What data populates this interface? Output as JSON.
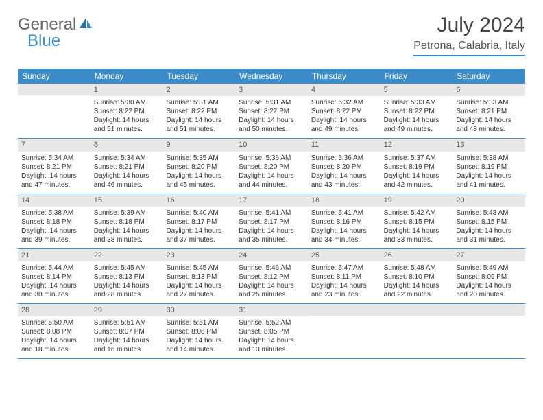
{
  "logo": {
    "part1": "General",
    "part2": "Blue"
  },
  "header": {
    "month_title": "July 2024",
    "location": "Petrona, Calabria, Italy"
  },
  "colors": {
    "accent": "#3b8cc9",
    "daynum_bg": "#e8e8e8",
    "text": "#333333",
    "header_text": "#555555"
  },
  "days_of_week": [
    "Sunday",
    "Monday",
    "Tuesday",
    "Wednesday",
    "Thursday",
    "Friday",
    "Saturday"
  ],
  "weeks": [
    [
      {
        "n": "",
        "sunrise": "",
        "sunset": "",
        "daylight": ""
      },
      {
        "n": "1",
        "sunrise": "Sunrise: 5:30 AM",
        "sunset": "Sunset: 8:22 PM",
        "daylight": "Daylight: 14 hours and 51 minutes."
      },
      {
        "n": "2",
        "sunrise": "Sunrise: 5:31 AM",
        "sunset": "Sunset: 8:22 PM",
        "daylight": "Daylight: 14 hours and 51 minutes."
      },
      {
        "n": "3",
        "sunrise": "Sunrise: 5:31 AM",
        "sunset": "Sunset: 8:22 PM",
        "daylight": "Daylight: 14 hours and 50 minutes."
      },
      {
        "n": "4",
        "sunrise": "Sunrise: 5:32 AM",
        "sunset": "Sunset: 8:22 PM",
        "daylight": "Daylight: 14 hours and 49 minutes."
      },
      {
        "n": "5",
        "sunrise": "Sunrise: 5:33 AM",
        "sunset": "Sunset: 8:22 PM",
        "daylight": "Daylight: 14 hours and 49 minutes."
      },
      {
        "n": "6",
        "sunrise": "Sunrise: 5:33 AM",
        "sunset": "Sunset: 8:21 PM",
        "daylight": "Daylight: 14 hours and 48 minutes."
      }
    ],
    [
      {
        "n": "7",
        "sunrise": "Sunrise: 5:34 AM",
        "sunset": "Sunset: 8:21 PM",
        "daylight": "Daylight: 14 hours and 47 minutes."
      },
      {
        "n": "8",
        "sunrise": "Sunrise: 5:34 AM",
        "sunset": "Sunset: 8:21 PM",
        "daylight": "Daylight: 14 hours and 46 minutes."
      },
      {
        "n": "9",
        "sunrise": "Sunrise: 5:35 AM",
        "sunset": "Sunset: 8:20 PM",
        "daylight": "Daylight: 14 hours and 45 minutes."
      },
      {
        "n": "10",
        "sunrise": "Sunrise: 5:36 AM",
        "sunset": "Sunset: 8:20 PM",
        "daylight": "Daylight: 14 hours and 44 minutes."
      },
      {
        "n": "11",
        "sunrise": "Sunrise: 5:36 AM",
        "sunset": "Sunset: 8:20 PM",
        "daylight": "Daylight: 14 hours and 43 minutes."
      },
      {
        "n": "12",
        "sunrise": "Sunrise: 5:37 AM",
        "sunset": "Sunset: 8:19 PM",
        "daylight": "Daylight: 14 hours and 42 minutes."
      },
      {
        "n": "13",
        "sunrise": "Sunrise: 5:38 AM",
        "sunset": "Sunset: 8:19 PM",
        "daylight": "Daylight: 14 hours and 41 minutes."
      }
    ],
    [
      {
        "n": "14",
        "sunrise": "Sunrise: 5:38 AM",
        "sunset": "Sunset: 8:18 PM",
        "daylight": "Daylight: 14 hours and 39 minutes."
      },
      {
        "n": "15",
        "sunrise": "Sunrise: 5:39 AM",
        "sunset": "Sunset: 8:18 PM",
        "daylight": "Daylight: 14 hours and 38 minutes."
      },
      {
        "n": "16",
        "sunrise": "Sunrise: 5:40 AM",
        "sunset": "Sunset: 8:17 PM",
        "daylight": "Daylight: 14 hours and 37 minutes."
      },
      {
        "n": "17",
        "sunrise": "Sunrise: 5:41 AM",
        "sunset": "Sunset: 8:17 PM",
        "daylight": "Daylight: 14 hours and 35 minutes."
      },
      {
        "n": "18",
        "sunrise": "Sunrise: 5:41 AM",
        "sunset": "Sunset: 8:16 PM",
        "daylight": "Daylight: 14 hours and 34 minutes."
      },
      {
        "n": "19",
        "sunrise": "Sunrise: 5:42 AM",
        "sunset": "Sunset: 8:15 PM",
        "daylight": "Daylight: 14 hours and 33 minutes."
      },
      {
        "n": "20",
        "sunrise": "Sunrise: 5:43 AM",
        "sunset": "Sunset: 8:15 PM",
        "daylight": "Daylight: 14 hours and 31 minutes."
      }
    ],
    [
      {
        "n": "21",
        "sunrise": "Sunrise: 5:44 AM",
        "sunset": "Sunset: 8:14 PM",
        "daylight": "Daylight: 14 hours and 30 minutes."
      },
      {
        "n": "22",
        "sunrise": "Sunrise: 5:45 AM",
        "sunset": "Sunset: 8:13 PM",
        "daylight": "Daylight: 14 hours and 28 minutes."
      },
      {
        "n": "23",
        "sunrise": "Sunrise: 5:45 AM",
        "sunset": "Sunset: 8:13 PM",
        "daylight": "Daylight: 14 hours and 27 minutes."
      },
      {
        "n": "24",
        "sunrise": "Sunrise: 5:46 AM",
        "sunset": "Sunset: 8:12 PM",
        "daylight": "Daylight: 14 hours and 25 minutes."
      },
      {
        "n": "25",
        "sunrise": "Sunrise: 5:47 AM",
        "sunset": "Sunset: 8:11 PM",
        "daylight": "Daylight: 14 hours and 23 minutes."
      },
      {
        "n": "26",
        "sunrise": "Sunrise: 5:48 AM",
        "sunset": "Sunset: 8:10 PM",
        "daylight": "Daylight: 14 hours and 22 minutes."
      },
      {
        "n": "27",
        "sunrise": "Sunrise: 5:49 AM",
        "sunset": "Sunset: 8:09 PM",
        "daylight": "Daylight: 14 hours and 20 minutes."
      }
    ],
    [
      {
        "n": "28",
        "sunrise": "Sunrise: 5:50 AM",
        "sunset": "Sunset: 8:08 PM",
        "daylight": "Daylight: 14 hours and 18 minutes."
      },
      {
        "n": "29",
        "sunrise": "Sunrise: 5:51 AM",
        "sunset": "Sunset: 8:07 PM",
        "daylight": "Daylight: 14 hours and 16 minutes."
      },
      {
        "n": "30",
        "sunrise": "Sunrise: 5:51 AM",
        "sunset": "Sunset: 8:06 PM",
        "daylight": "Daylight: 14 hours and 14 minutes."
      },
      {
        "n": "31",
        "sunrise": "Sunrise: 5:52 AM",
        "sunset": "Sunset: 8:05 PM",
        "daylight": "Daylight: 14 hours and 13 minutes."
      },
      {
        "n": "",
        "sunrise": "",
        "sunset": "",
        "daylight": ""
      },
      {
        "n": "",
        "sunrise": "",
        "sunset": "",
        "daylight": ""
      },
      {
        "n": "",
        "sunrise": "",
        "sunset": "",
        "daylight": ""
      }
    ]
  ]
}
